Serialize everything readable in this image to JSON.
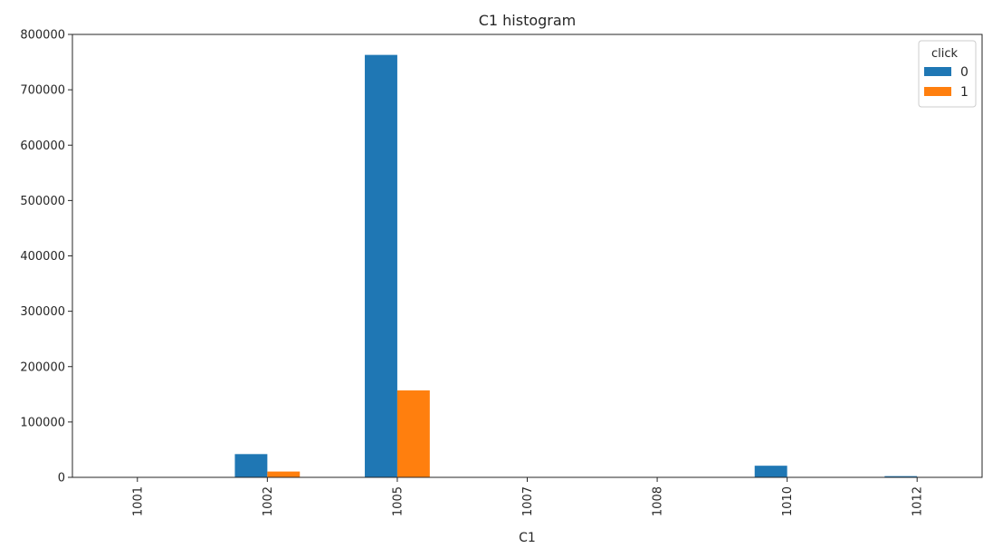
{
  "chart_data": {
    "type": "bar",
    "title": "C1 histogram",
    "xlabel": "C1",
    "ylabel": "",
    "categories": [
      "1001",
      "1002",
      "1005",
      "1007",
      "1008",
      "1010",
      "1012"
    ],
    "series": [
      {
        "name": "0",
        "color": "#1f77b4",
        "values": [
          400,
          42000,
          763000,
          300,
          100,
          21000,
          2200
        ]
      },
      {
        "name": "1",
        "color": "#ff7f0e",
        "values": [
          60,
          10500,
          157000,
          40,
          20,
          600,
          300
        ]
      }
    ],
    "ylim": [
      0,
      800000
    ],
    "yticks": [
      0,
      100000,
      200000,
      300000,
      400000,
      500000,
      600000,
      700000,
      800000
    ],
    "legend": {
      "title": "click",
      "placement": "top-right"
    },
    "grid": false
  }
}
